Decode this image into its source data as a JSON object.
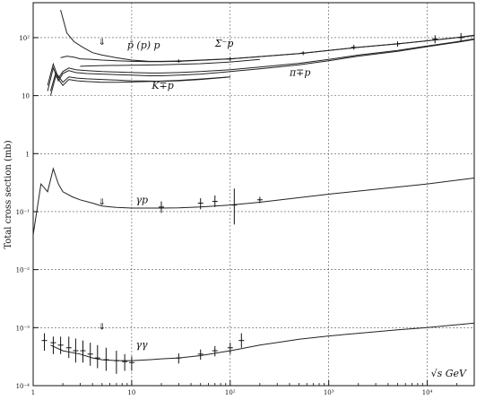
{
  "chart_data": {
    "type": "scatter",
    "title": "",
    "xlabel": "√s GeV",
    "ylabel": "Total cross section (mb)",
    "x_scale": "log",
    "y_scale": "log",
    "xlim": [
      1,
      30000
    ],
    "ylim": [
      0.0001,
      400
    ],
    "grid": true,
    "legend": "none",
    "x_ticks": [
      {
        "value": 1,
        "label": "1"
      },
      {
        "value": 10,
        "label": "10"
      },
      {
        "value": 100,
        "label": "10²"
      },
      {
        "value": 1000,
        "label": "10³"
      },
      {
        "value": 10000,
        "label": "10⁴"
      }
    ],
    "y_ticks": [
      {
        "value": 100,
        "label": "10²"
      },
      {
        "value": 10,
        "label": "10"
      },
      {
        "value": 1,
        "label": "1"
      },
      {
        "value": 0.1,
        "label": "10⁻¹"
      },
      {
        "value": 0.01,
        "label": "10⁻²"
      },
      {
        "value": 0.001,
        "label": "10⁻³"
      },
      {
        "value": 0.0001,
        "label": "10⁻⁴"
      }
    ],
    "annotations": [
      {
        "text": "p̄ (p) p",
        "x": 9,
        "y": 65
      },
      {
        "text": "Σ⁻p",
        "x": 70,
        "y": 70
      },
      {
        "text": "π∓p",
        "x": 400,
        "y": 22
      },
      {
        "text": "K∓p",
        "x": 16,
        "y": 13
      },
      {
        "text": "γp",
        "x": 11,
        "y": 0.14
      },
      {
        "text": "γγ",
        "x": 11,
        "y": 0.00045
      }
    ],
    "arrows": [
      {
        "x": 5,
        "y": 75
      },
      {
        "x": 5,
        "y": 0.13
      },
      {
        "x": 5,
        "y": 0.00092
      }
    ],
    "series": [
      {
        "x": [
          1.9,
          2.2,
          2.6,
          3.2,
          4,
          5,
          7,
          10,
          15,
          20,
          30,
          50,
          100,
          200,
          500,
          1000,
          2000,
          5000,
          10000,
          20000,
          30000
        ],
        "y": [
          300,
          120,
          85,
          68,
          55,
          50,
          45,
          41,
          39,
          39,
          39.5,
          41,
          43,
          47,
          53,
          60,
          68,
          78,
          88,
          100,
          110
        ]
      },
      {
        "x": [
          1.9,
          2.2,
          2.6,
          3,
          4,
          5,
          7,
          10,
          15,
          20,
          30,
          50,
          100,
          200,
          500,
          1000,
          2000,
          5000,
          10000,
          20000,
          30000
        ],
        "y": [
          45,
          48,
          46,
          43,
          42,
          41,
          40,
          39,
          38.5,
          38.5,
          39,
          40.5,
          43,
          47,
          53,
          60,
          68,
          78,
          88,
          100,
          108
        ]
      },
      {
        "x": [
          3,
          5,
          10,
          20,
          50,
          100,
          200
        ],
        "y": [
          32,
          33,
          33.5,
          34,
          35.5,
          38,
          42
        ]
      },
      {
        "x": [
          1.4,
          1.6,
          1.8,
          2,
          2.3,
          2.7,
          3.5,
          5,
          7,
          10,
          15,
          20,
          30,
          50,
          100,
          200,
          500,
          1000,
          2000,
          5000,
          10000,
          20000,
          30000
        ],
        "y": [
          15,
          35,
          20,
          26,
          30,
          28,
          27,
          26,
          25.5,
          25,
          24.5,
          24.5,
          25,
          26,
          28,
          31,
          36,
          42,
          50,
          60,
          72,
          85,
          95
        ]
      },
      {
        "x": [
          1.4,
          1.6,
          1.8,
          2,
          2.3,
          2.7,
          3.5,
          5,
          7,
          10,
          15,
          20,
          30,
          50,
          100,
          200,
          500,
          1000,
          2000,
          5000,
          10000,
          20000,
          30000
        ],
        "y": [
          12,
          30,
          18,
          24,
          27,
          25,
          24,
          23.5,
          23,
          22.5,
          22,
          22,
          22.5,
          23.5,
          26,
          29,
          34,
          40,
          48,
          58,
          70,
          83,
          93
        ]
      },
      {
        "x": [
          1.5,
          1.7,
          2,
          2.3,
          2.8,
          3.5,
          5,
          7,
          10,
          15,
          20,
          30,
          50,
          100
        ],
        "y": [
          12,
          25,
          17,
          21,
          20,
          19.5,
          19,
          18.5,
          18,
          17.8,
          17.7,
          18,
          19,
          21
        ]
      },
      {
        "x": [
          1.5,
          1.7,
          2,
          2.3,
          2.8,
          3.5,
          5,
          7,
          10,
          15,
          20,
          30,
          50,
          100
        ],
        "y": [
          10,
          22,
          15,
          19,
          18,
          17.5,
          17,
          17,
          17.2,
          17.5,
          17.8,
          18.3,
          19.3,
          21
        ]
      },
      {
        "x": [
          1,
          1.2,
          1.4,
          1.6,
          1.8,
          2,
          2.5,
          3,
          4,
          5,
          7,
          10,
          20,
          30,
          50,
          100,
          200,
          1000,
          10000,
          30000
        ],
        "y": [
          0.04,
          0.3,
          0.22,
          0.55,
          0.3,
          0.22,
          0.18,
          0.16,
          0.14,
          0.125,
          0.118,
          0.115,
          0.115,
          0.116,
          0.12,
          0.13,
          0.145,
          0.2,
          0.3,
          0.38
        ]
      },
      {
        "x": [
          1.5,
          2,
          3,
          4,
          5,
          7,
          10,
          15,
          20,
          30,
          50,
          100,
          200,
          500,
          1000,
          2000,
          5000,
          10000,
          20000,
          30000
        ],
        "y": [
          0.0005,
          0.0004,
          0.00035,
          0.0003,
          0.00028,
          0.00027,
          0.00027,
          0.00028,
          0.00029,
          0.0003,
          0.00033,
          0.0004,
          0.0005,
          0.00063,
          0.00072,
          0.0008,
          0.00092,
          0.001,
          0.00112,
          0.0012
        ]
      }
    ],
    "error_points": [
      {
        "x": 1.3,
        "y": 0.0006,
        "lo": 0.0004,
        "hi": 0.0008
      },
      {
        "x": 1.6,
        "y": 0.00055,
        "lo": 0.00035,
        "hi": 0.0007
      },
      {
        "x": 1.9,
        "y": 0.0005,
        "lo": 0.00035,
        "hi": 0.0007
      },
      {
        "x": 2.3,
        "y": 0.00045,
        "lo": 0.0003,
        "hi": 0.0007
      },
      {
        "x": 2.7,
        "y": 0.0004,
        "lo": 0.00025,
        "hi": 0.00065
      },
      {
        "x": 3.2,
        "y": 0.0004,
        "lo": 0.00025,
        "hi": 0.0006
      },
      {
        "x": 3.8,
        "y": 0.00035,
        "lo": 0.00022,
        "hi": 0.00055
      },
      {
        "x": 4.5,
        "y": 0.0003,
        "lo": 0.0002,
        "hi": 0.0005
      },
      {
        "x": 5.5,
        "y": 0.00028,
        "lo": 0.00018,
        "hi": 0.00045
      },
      {
        "x": 7,
        "y": 0.00027,
        "lo": 0.00016,
        "hi": 0.0004
      },
      {
        "x": 8.5,
        "y": 0.00026,
        "lo": 0.00018,
        "hi": 0.00035
      },
      {
        "x": 10,
        "y": 0.00025,
        "lo": 0.00018,
        "hi": 0.00032
      },
      {
        "x": 30,
        "y": 0.0003,
        "lo": 0.00024,
        "hi": 0.00036
      },
      {
        "x": 50,
        "y": 0.00035,
        "lo": 0.00028,
        "hi": 0.00042
      },
      {
        "x": 70,
        "y": 0.0004,
        "lo": 0.00032,
        "hi": 0.00048
      },
      {
        "x": 100,
        "y": 0.00045,
        "lo": 0.00035,
        "hi": 0.00055
      },
      {
        "x": 130,
        "y": 0.0006,
        "lo": 0.00045,
        "hi": 0.0008
      },
      {
        "x": 20,
        "y": 0.12,
        "lo": 0.095,
        "hi": 0.15
      },
      {
        "x": 50,
        "y": 0.14,
        "lo": 0.11,
        "hi": 0.17
      },
      {
        "x": 70,
        "y": 0.15,
        "lo": 0.12,
        "hi": 0.19
      },
      {
        "x": 110,
        "y": 0.13,
        "lo": 0.06,
        "hi": 0.25
      },
      {
        "x": 200,
        "y": 0.16,
        "lo": 0.14,
        "hi": 0.18
      },
      {
        "x": 30,
        "y": 39,
        "lo": 37,
        "hi": 42
      },
      {
        "x": 100,
        "y": 43,
        "lo": 40,
        "hi": 46
      },
      {
        "x": 550,
        "y": 54,
        "lo": 50,
        "hi": 58
      },
      {
        "x": 1800,
        "y": 68,
        "lo": 62,
        "hi": 75
      },
      {
        "x": 5000,
        "y": 78,
        "lo": 70,
        "hi": 86
      },
      {
        "x": 12000,
        "y": 95,
        "lo": 80,
        "hi": 110
      },
      {
        "x": 22000,
        "y": 100,
        "lo": 85,
        "hi": 120
      }
    ]
  }
}
